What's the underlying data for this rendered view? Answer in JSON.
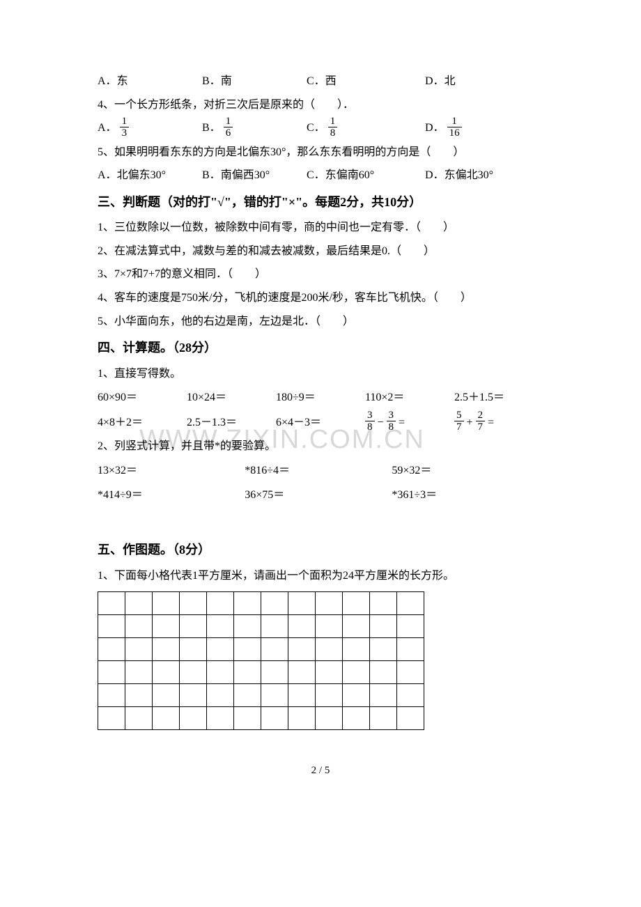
{
  "q3_options": {
    "a": "东",
    "b": "南",
    "c": "西",
    "d": "北"
  },
  "q4": {
    "text": "4、一个长方形纸条，对折三次后是原来的（　　）．",
    "options": [
      {
        "label": "A．",
        "num": "1",
        "den": "3"
      },
      {
        "label": "B．",
        "num": "1",
        "den": "6"
      },
      {
        "label": "C．",
        "num": "1",
        "den": "8"
      },
      {
        "label": "D．",
        "num": "1",
        "den": "16"
      }
    ]
  },
  "q5": {
    "text": "5、如果明明看东东的方向是北偏东30°，那么东东看明明的方向是（　　）",
    "options": {
      "a": "北偏东30°",
      "b": "南偏西30°",
      "c": "东偏南60°",
      "d": "东偏北30°"
    }
  },
  "section3": {
    "heading": "三、判断题（对的打\"√\"，错的打\"×\"。每题2分，共10分）",
    "items": [
      "1、三位数除以一位数，被除数中间有零，商的中间也一定有零．（　　）",
      "2、在减法算式中，减数与差的和减去被减数，最后结果是0.（　　）",
      "3、7×7和7+7的意义相同．（　　）",
      "4、客车的速度是750米/分，飞机的速度是200米/秒，客车比飞机快。（　　）",
      "5、小华面向东，他的右边是南，左边是北．（　　）"
    ]
  },
  "section4": {
    "heading": "四、计算题。（28分）",
    "sub1": "1、直接写得数。",
    "row1": [
      "60×90＝",
      "10×24＝",
      "180÷9＝",
      "110×2＝",
      "2.5＋1.5＝"
    ],
    "row2": [
      "4×8＋2＝",
      "2.5－1.3＝",
      "6×4－3＝"
    ],
    "row2_frac1": {
      "n1": "3",
      "d1": "8",
      "n2": "3",
      "d2": "8",
      "op": "−"
    },
    "row2_frac2": {
      "n1": "5",
      "d1": "7",
      "n2": "2",
      "d2": "7",
      "op": "+"
    },
    "sub2": "2、列竖式计算，并且带*的要验算。",
    "row3": [
      "13×32＝",
      "*816÷4＝",
      "59×32＝"
    ],
    "row4": [
      "*414÷9＝",
      "36×75＝",
      "*361÷3＝"
    ]
  },
  "section5": {
    "heading": "五、作图题。（8分）",
    "sub1": "1、下面每小格代表1平方厘米，请画出一个面积为24平方厘米的长方形。"
  },
  "footer": "2 / 5",
  "watermark": "WWW.ZIXIN.COM.CN",
  "grid": {
    "rows": 6,
    "cols": 12
  }
}
